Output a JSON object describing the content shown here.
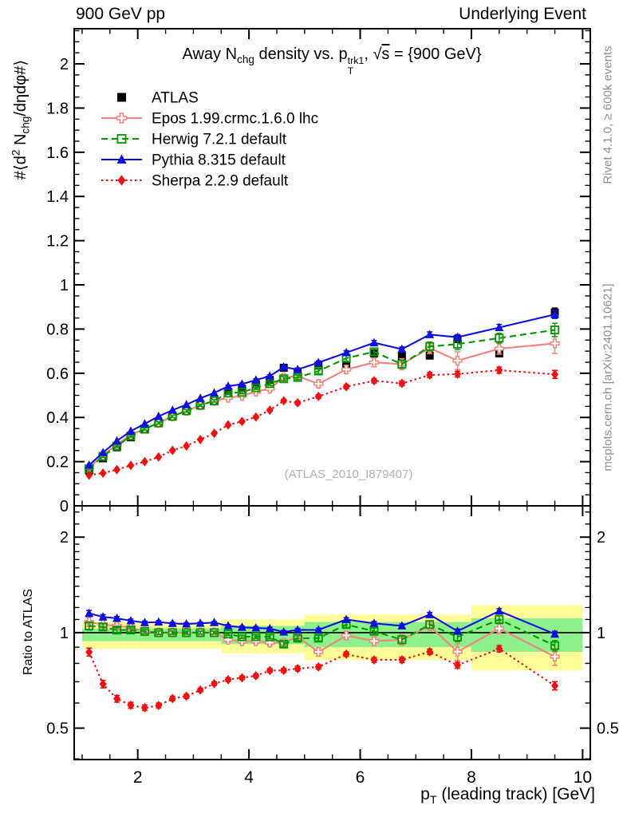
{
  "header": {
    "left": "900 GeV pp",
    "right": "Underlying Event"
  },
  "side_notes": {
    "top": "Rivet 4.1.0, ≥ 600k events",
    "bottom": "mcplots.cern.ch [arXiv:2401.10621]"
  },
  "watermark": "(ATLAS_2010_I879407)",
  "rich": {
    "title": [
      {
        "t": "Away N"
      },
      {
        "t": "chg",
        "s": "sub"
      },
      {
        "t": " density vs. p"
      },
      {
        "t": "trk1|T",
        "s": "supsub"
      },
      {
        "t": ", "
      },
      {
        "t": "s",
        "s": "sqrt"
      },
      {
        "t": " = {900 GeV}"
      }
    ],
    "ylabel_main": [
      {
        "t": "#⟨d"
      },
      {
        "t": "2",
        "s": "sup"
      },
      {
        "t": " N"
      },
      {
        "t": "chg",
        "s": "sub"
      },
      {
        "t": "/dηdφ#⟩"
      }
    ],
    "xlabel": [
      {
        "t": "p"
      },
      {
        "t": "T",
        "s": "sub"
      },
      {
        "t": " (leading track) [GeV]"
      }
    ]
  },
  "chart_data": {
    "type": "line",
    "title": "Away N_chg density vs. p_T^trk1, sqrt(s) = {900 GeV}",
    "xlabel": "p_T (leading track) [GeV]",
    "ylabel_main": "#<d^2 N_chg/d.eta d.phi#>",
    "ylabel_ratio": "Ratio to ATLAS",
    "x_range_gev": [
      0.857,
      10.138
    ],
    "main_y_range": [
      0,
      2.159
    ],
    "ratio_y_range": [
      0.398,
      2.51
    ],
    "ratio_log": true,
    "legend_position": "top-left-inside",
    "grid": false,
    "bin_edges": [
      1.0,
      1.25,
      1.5,
      1.75,
      2.0,
      2.25,
      2.5,
      2.75,
      3.0,
      3.25,
      3.5,
      3.75,
      4.0,
      4.25,
      4.5,
      4.75,
      5.0,
      5.5,
      6.0,
      6.5,
      7.0,
      7.5,
      8.0,
      9.0,
      10.0
    ],
    "x": [
      1.125,
      1.375,
      1.625,
      1.875,
      2.125,
      2.375,
      2.625,
      2.875,
      3.125,
      3.375,
      3.625,
      3.875,
      4.125,
      4.375,
      4.625,
      4.875,
      5.25,
      5.75,
      6.25,
      6.75,
      7.25,
      7.75,
      8.5,
      9.5
    ],
    "ratio_reference": "ATLAS",
    "series": [
      {
        "name": "ATLAS",
        "color": "#000000",
        "marker": "square-filled",
        "line": "none",
        "is_reference": true,
        "values": [
          0.16,
          0.215,
          0.265,
          0.31,
          0.345,
          0.375,
          0.405,
          0.43,
          0.455,
          0.475,
          0.515,
          0.53,
          0.55,
          0.57,
          0.625,
          0.605,
          0.635,
          0.63,
          0.69,
          0.675,
          0.68,
          0.755,
          0.69,
          0.875
        ],
        "err": [
          0.008,
          0.008,
          0.008,
          0.008,
          0.008,
          0.008,
          0.008,
          0.008,
          0.008,
          0.009,
          0.009,
          0.01,
          0.01,
          0.01,
          0.012,
          0.012,
          0.012,
          0.013,
          0.013,
          0.014,
          0.015,
          0.016,
          0.015,
          0.02
        ]
      },
      {
        "name": "Epos 1.99.crmc.1.6.0 lhc",
        "color": "#f4837d",
        "marker": "cross-open",
        "line": "solid",
        "is_reference": false,
        "values": [
          0.173,
          0.228,
          0.278,
          0.322,
          0.348,
          0.375,
          0.405,
          0.43,
          0.455,
          0.475,
          0.489,
          0.498,
          0.517,
          0.53,
          0.581,
          0.587,
          0.552,
          0.617,
          0.649,
          0.641,
          0.714,
          0.657,
          0.711,
          0.735
        ],
        "err": [
          0.006,
          0.006,
          0.006,
          0.006,
          0.006,
          0.006,
          0.006,
          0.006,
          0.007,
          0.007,
          0.008,
          0.008,
          0.009,
          0.01,
          0.012,
          0.014,
          0.016,
          0.018,
          0.02,
          0.025,
          0.025,
          0.04,
          0.025,
          0.045
        ]
      },
      {
        "name": "Herwig 7.2.1 default",
        "color": "#009900",
        "marker": "square-open",
        "line": "dashed",
        "is_reference": false,
        "values": [
          0.168,
          0.224,
          0.27,
          0.316,
          0.348,
          0.375,
          0.405,
          0.43,
          0.455,
          0.475,
          0.51,
          0.514,
          0.534,
          0.553,
          0.575,
          0.581,
          0.61,
          0.668,
          0.697,
          0.641,
          0.721,
          0.732,
          0.759,
          0.796
        ],
        "err": [
          0.005,
          0.005,
          0.005,
          0.005,
          0.005,
          0.005,
          0.005,
          0.005,
          0.005,
          0.005,
          0.006,
          0.006,
          0.007,
          0.008,
          0.009,
          0.01,
          0.012,
          0.014,
          0.016,
          0.018,
          0.02,
          0.025,
          0.022,
          0.03
        ]
      },
      {
        "name": "Pythia 8.315 default",
        "color": "#0f0fe0",
        "marker": "triangle-filled",
        "line": "solid",
        "is_reference": false,
        "values": [
          0.184,
          0.241,
          0.294,
          0.338,
          0.371,
          0.405,
          0.433,
          0.458,
          0.487,
          0.511,
          0.541,
          0.551,
          0.569,
          0.587,
          0.628,
          0.617,
          0.648,
          0.693,
          0.738,
          0.709,
          0.775,
          0.763,
          0.807,
          0.866
        ],
        "err": [
          0.004,
          0.004,
          0.004,
          0.004,
          0.004,
          0.004,
          0.004,
          0.004,
          0.004,
          0.004,
          0.005,
          0.005,
          0.006,
          0.006,
          0.007,
          0.007,
          0.008,
          0.009,
          0.01,
          0.01,
          0.012,
          0.012,
          0.014,
          0.018
        ]
      },
      {
        "name": "Sherpa 2.2.9 default",
        "color": "#ee1111",
        "marker": "diamond-filled",
        "line": "dotted",
        "is_reference": false,
        "values": [
          0.139,
          0.148,
          0.164,
          0.183,
          0.2,
          0.221,
          0.251,
          0.271,
          0.3,
          0.328,
          0.366,
          0.382,
          0.402,
          0.433,
          0.475,
          0.466,
          0.495,
          0.539,
          0.566,
          0.554,
          0.592,
          0.596,
          0.614,
          0.595
        ],
        "err": [
          0.004,
          0.004,
          0.004,
          0.004,
          0.004,
          0.004,
          0.004,
          0.004,
          0.004,
          0.004,
          0.005,
          0.005,
          0.006,
          0.006,
          0.007,
          0.008,
          0.008,
          0.009,
          0.01,
          0.011,
          0.012,
          0.013,
          0.014,
          0.018
        ]
      }
    ],
    "bands": {
      "yellow": {
        "color": "#ffff99",
        "lo": [
          0.89,
          0.89,
          0.89,
          0.89,
          0.89,
          0.89,
          0.89,
          0.89,
          0.89,
          0.89,
          0.86,
          0.86,
          0.86,
          0.86,
          0.86,
          0.86,
          0.82,
          0.82,
          0.82,
          0.82,
          0.82,
          0.82,
          0.76,
          0.76
        ],
        "hi": [
          1.08,
          1.08,
          1.08,
          1.08,
          1.08,
          1.08,
          1.08,
          1.08,
          1.08,
          1.08,
          1.1,
          1.1,
          1.1,
          1.1,
          1.1,
          1.1,
          1.14,
          1.14,
          1.14,
          1.14,
          1.14,
          1.14,
          1.22,
          1.22
        ]
      },
      "green": {
        "color": "#8df08d",
        "lo": [
          0.94,
          0.94,
          0.94,
          0.94,
          0.94,
          0.94,
          0.94,
          0.94,
          0.94,
          0.94,
          0.92,
          0.92,
          0.92,
          0.92,
          0.92,
          0.92,
          0.9,
          0.9,
          0.9,
          0.9,
          0.9,
          0.9,
          0.87,
          0.87
        ],
        "hi": [
          1.03,
          1.03,
          1.03,
          1.03,
          1.03,
          1.03,
          1.03,
          1.03,
          1.03,
          1.03,
          1.05,
          1.05,
          1.05,
          1.05,
          1.05,
          1.05,
          1.08,
          1.08,
          1.08,
          1.08,
          1.08,
          1.08,
          1.11,
          1.11
        ]
      }
    },
    "axes": {
      "x_major": [
        2,
        4,
        6,
        8,
        10
      ],
      "x_minor_step": 0.5,
      "y_major": [
        0,
        0.2,
        0.4,
        0.6,
        0.8,
        1.0,
        1.2,
        1.4,
        1.6,
        1.8,
        2.0
      ],
      "y_minor_step": 0.05,
      "ratio_major": [
        0.5,
        1,
        2
      ],
      "ratio_minor": [
        0.4,
        0.6,
        0.7,
        0.8,
        0.9,
        1.1,
        1.2,
        1.3,
        1.4,
        1.5,
        1.6,
        1.7,
        1.8,
        1.9,
        2.2,
        2.4
      ]
    }
  }
}
